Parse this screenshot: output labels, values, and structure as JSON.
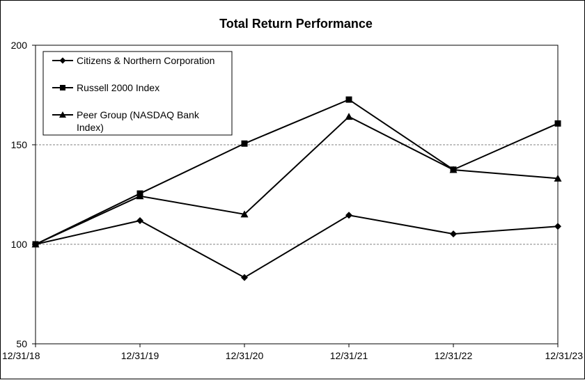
{
  "chart_data": {
    "type": "line",
    "title": "Total Return Performance",
    "xlabel": "",
    "ylabel": "",
    "categories": [
      "12/31/18",
      "12/31/19",
      "12/31/20",
      "12/31/21",
      "12/31/22",
      "12/31/23"
    ],
    "ylim": [
      50,
      200
    ],
    "yticks": [
      50,
      100,
      150,
      200
    ],
    "grid": "horizontal dashed at 100 and 150",
    "legend_position": "top-left, inside plot",
    "series": [
      {
        "name": "Citizens & Northern Corporation",
        "marker": "diamond",
        "values": [
          100,
          111.9,
          83.3,
          114.6,
          105.2,
          109
        ]
      },
      {
        "name": "Russell 2000 Index",
        "marker": "square",
        "values": [
          100,
          125.5,
          150.6,
          172.7,
          137.5,
          160.7
        ]
      },
      {
        "name": "Peer Group (NASDAQ Bank Index)",
        "legend_lines": [
          "Peer Group (NASDAQ Bank",
          "Index)"
        ],
        "marker": "triangle",
        "values": [
          100,
          124.2,
          115.1,
          164.1,
          137.4,
          133.1
        ]
      }
    ],
    "colors": {
      "line": "#000000",
      "grid": "#808080",
      "background": "#ffffff"
    }
  }
}
